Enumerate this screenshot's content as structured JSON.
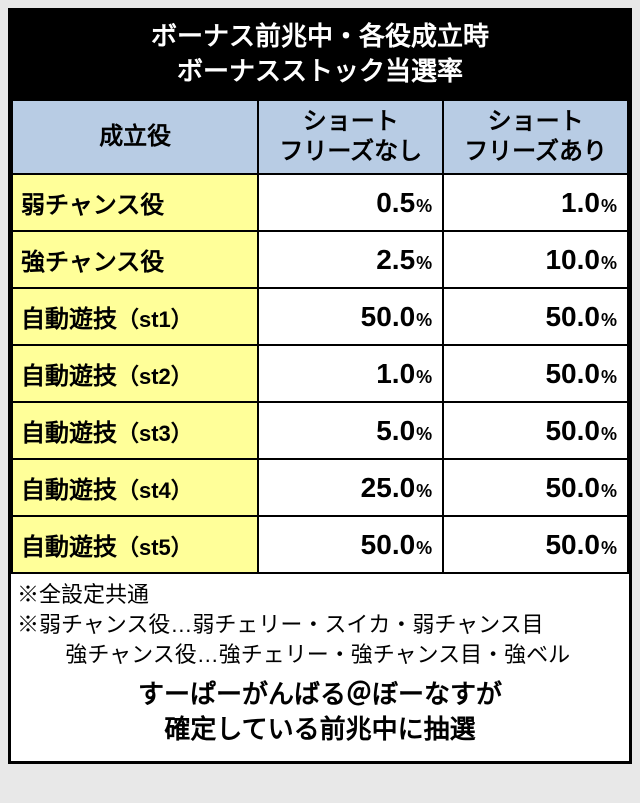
{
  "title": {
    "line1": "ボーナス前兆中・各役成立時",
    "line2": "ボーナスストック当選率"
  },
  "columns": {
    "col0": "成立役",
    "col1_line1": "ショート",
    "col1_line2": "フリーズなし",
    "col2_line1": "ショート",
    "col2_line2": "フリーズあり"
  },
  "unit": "%",
  "rows": [
    {
      "label": "弱チャンス役",
      "paren": "",
      "v1": "0.5",
      "v2": "1.0"
    },
    {
      "label": "強チャンス役",
      "paren": "",
      "v1": "2.5",
      "v2": "10.0"
    },
    {
      "label": "自動遊技",
      "paren": "（st1）",
      "v1": "50.0",
      "v2": "50.0"
    },
    {
      "label": "自動遊技",
      "paren": "（st2）",
      "v1": "1.0",
      "v2": "50.0"
    },
    {
      "label": "自動遊技",
      "paren": "（st3）",
      "v1": "5.0",
      "v2": "50.0"
    },
    {
      "label": "自動遊技",
      "paren": "（st4）",
      "v1": "25.0",
      "v2": "50.0"
    },
    {
      "label": "自動遊技",
      "paren": "（st5）",
      "v1": "50.0",
      "v2": "50.0"
    }
  ],
  "notes": {
    "n1": "※全設定共通",
    "n2": "※弱チャンス役…弱チェリー・スイカ・弱チャンス目",
    "n3": "強チャンス役…強チェリー・強チャンス目・強ベル"
  },
  "footer": {
    "line1": "すーぱーがんばる＠ぼーなすが",
    "line2": "確定している前兆中に抽選"
  },
  "colors": {
    "header_bg": "#b8cce4",
    "rowlabel_bg": "#ffff99",
    "border": "#000000",
    "title_bg": "#000000",
    "title_fg": "#ffffff",
    "page_bg": "#e8e8e8"
  },
  "layout": {
    "col_widths_pct": [
      40,
      30,
      30
    ],
    "title_fontsize": 26,
    "header_fontsize": 24,
    "value_fontsize": 28,
    "unit_fontsize": 18,
    "note_fontsize": 22,
    "footer_fontsize": 26
  }
}
